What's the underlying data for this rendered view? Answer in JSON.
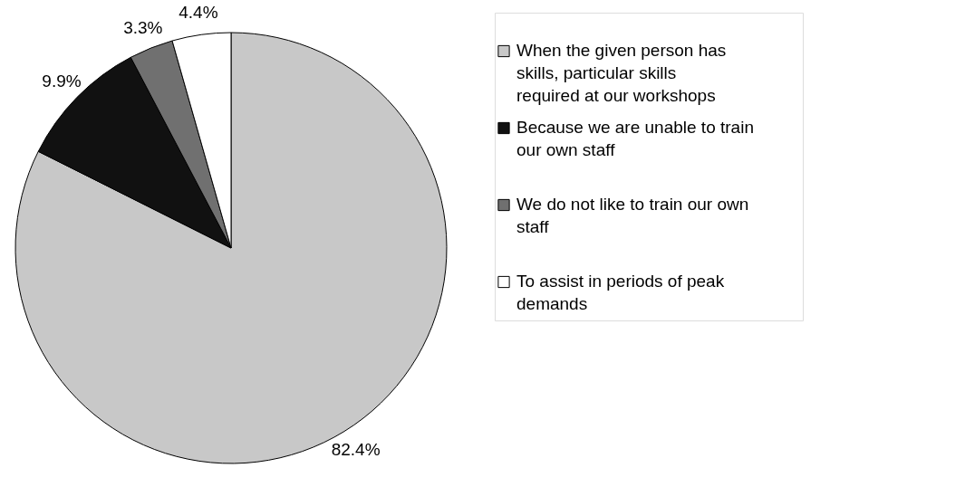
{
  "chart_data": {
    "type": "pie",
    "categories": [
      "When the given person has skills, particular skills required at our workshops",
      "Because we are unable to train our own staff",
      "We do not like to train our own staff",
      "To assist in periods of peak demands"
    ],
    "values": [
      82.4,
      9.9,
      3.3,
      4.4
    ],
    "colors": [
      "#c8c8c8",
      "#111111",
      "#707070",
      "#ffffff"
    ],
    "value_labels": [
      "82.4%",
      "9.9%",
      "3.3%",
      "4.4%"
    ],
    "legend": "right"
  }
}
